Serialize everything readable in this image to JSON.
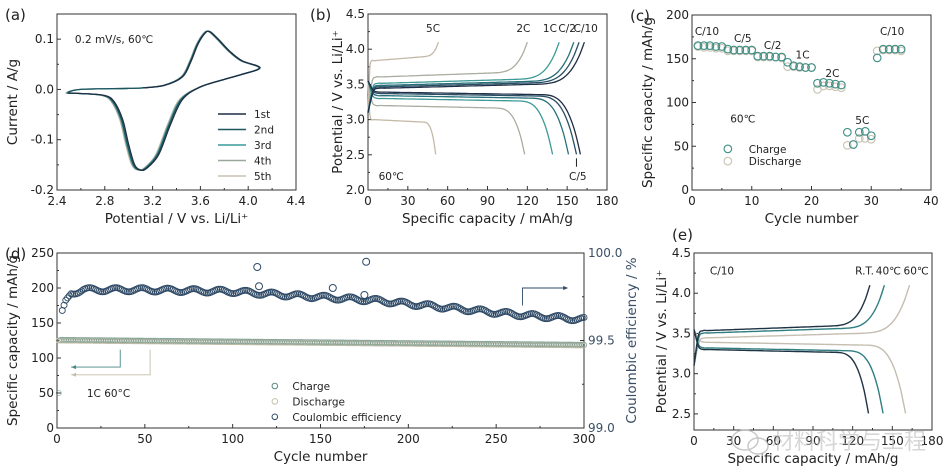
{
  "watermark": {
    "text": "材料科学与工程",
    "icon": "wechat-icon"
  },
  "chart_data": [
    {
      "id": "a",
      "panel_label": "(a)",
      "type": "line",
      "title": "",
      "annotation": "0.2 mV/s, 60℃",
      "xlabel": "Potential / V vs. Li/Li⁺",
      "ylabel": "Current / A/g",
      "xlim": [
        2.4,
        4.4
      ],
      "ylim": [
        -0.2,
        0.15
      ],
      "xticks": [
        2.4,
        2.8,
        3.2,
        3.6,
        4.0,
        4.4
      ],
      "xtick_labels": [
        "2.4",
        "2.8",
        "3.2",
        "3.6",
        "4.0",
        "4.4"
      ],
      "yticks": [
        -0.2,
        -0.1,
        0.0,
        0.1
      ],
      "ytick_labels": [
        "-0.2",
        "-0.1",
        "0.0",
        "0.1"
      ],
      "legend": {
        "position": "bottom-right",
        "entries": [
          "1st",
          "2nd",
          "3rd",
          "4th",
          "5th"
        ]
      },
      "series": [
        {
          "name": "1st",
          "color": "#1f2f45",
          "shift": 0.0,
          "start": 3.12
        },
        {
          "name": "2nd",
          "color": "#1d5560",
          "shift": -0.01,
          "start": 2.5
        },
        {
          "name": "3rd",
          "color": "#3a9a9a",
          "shift": -0.015,
          "start": 2.5
        },
        {
          "name": "4th",
          "color": "#9aa89a",
          "shift": -0.02,
          "start": 2.5
        },
        {
          "name": "5th",
          "color": "#c9c0b0",
          "shift": -0.025,
          "start": 2.5
        }
      ],
      "cv_shape": {
        "anodic": [
          [
            3.12,
            0.003
          ],
          [
            3.3,
            0.008
          ],
          [
            3.45,
            0.025
          ],
          [
            3.52,
            0.055
          ],
          [
            3.58,
            0.09
          ],
          [
            3.64,
            0.112
          ],
          [
            3.68,
            0.115
          ],
          [
            3.75,
            0.1
          ],
          [
            3.85,
            0.075
          ],
          [
            3.95,
            0.057
          ],
          [
            4.1,
            0.043
          ]
        ],
        "cathodic": [
          [
            4.1,
            0.043
          ],
          [
            3.95,
            0.03
          ],
          [
            3.8,
            0.02
          ],
          [
            3.6,
            0.005
          ],
          [
            3.45,
            -0.02
          ],
          [
            3.35,
            -0.07
          ],
          [
            3.25,
            -0.13
          ],
          [
            3.15,
            -0.157
          ],
          [
            3.1,
            -0.16
          ],
          [
            3.05,
            -0.15
          ],
          [
            3.0,
            -0.11
          ],
          [
            2.95,
            -0.06
          ],
          [
            2.88,
            -0.025
          ],
          [
            2.8,
            -0.012
          ],
          [
            2.6,
            -0.008
          ],
          [
            2.5,
            -0.007
          ]
        ],
        "return": [
          [
            2.5,
            -0.002
          ],
          [
            2.6,
            0.0
          ],
          [
            3.0,
            0.002
          ],
          [
            3.12,
            0.003
          ]
        ]
      }
    },
    {
      "id": "b",
      "panel_label": "(b)",
      "type": "line",
      "annotation": "60℃",
      "xlabel": "Specific capacity / mAh/g",
      "ylabel": "Potential / V vs. Li/Li⁺",
      "xlim": [
        0,
        180
      ],
      "ylim": [
        2.0,
        4.5
      ],
      "xticks": [
        0,
        30,
        60,
        90,
        120,
        150,
        180
      ],
      "xtick_labels": [
        "0",
        "30",
        "60",
        "90",
        "120",
        "150",
        "180"
      ],
      "yticks": [
        2.0,
        2.5,
        3.0,
        3.5,
        4.0,
        4.5
      ],
      "ytick_labels": [
        "2.0",
        "2.5",
        "3.0",
        "3.5",
        "4.0",
        "4.5"
      ],
      "series": [
        {
          "name": "C/10",
          "color": "#1f2f45",
          "charge_cap": 163,
          "discharge_cap": 160,
          "charge_plateau": 3.46,
          "discharge_plateau": 3.39
        },
        {
          "name": "C/5",
          "color": "#2a4f66",
          "charge_cap": 159,
          "discharge_cap": 157,
          "charge_plateau": 3.48,
          "discharge_plateau": 3.37
        },
        {
          "name": "C/2",
          "color": "#27707a",
          "charge_cap": 155,
          "discharge_cap": 151,
          "charge_plateau": 3.5,
          "discharge_plateau": 3.34
        },
        {
          "name": "1C",
          "color": "#3e9a96",
          "charge_cap": 144,
          "discharge_cap": 139,
          "charge_plateau": 3.53,
          "discharge_plateau": 3.3
        },
        {
          "name": "2C",
          "color": "#a8aea0",
          "charge_cap": 120,
          "discharge_cap": 118,
          "charge_plateau": 3.62,
          "discharge_plateau": 3.2
        },
        {
          "name": "5C",
          "color": "#c4b9a8",
          "charge_cap": 53,
          "discharge_cap": 51,
          "charge_plateau": 3.85,
          "discharge_plateau": 3.0
        }
      ],
      "labels": [
        "5C",
        "2C",
        "1C",
        "C/2",
        "C/10",
        "C/5"
      ]
    },
    {
      "id": "c",
      "panel_label": "(c)",
      "type": "scatter",
      "xlabel": "Cycle number",
      "ylabel": "Specific capacity / mAh/g",
      "xlim": [
        0,
        40
      ],
      "ylim": [
        0,
        200
      ],
      "xticks": [
        0,
        10,
        20,
        30,
        40
      ],
      "xtick_labels": [
        "0",
        "10",
        "20",
        "30",
        "40"
      ],
      "yticks": [
        0,
        50,
        100,
        150,
        200
      ],
      "ytick_labels": [
        "0",
        "50",
        "100",
        "150",
        "200"
      ],
      "annotation": "60℃",
      "rate_labels": [
        {
          "text": "C/10",
          "x": 2.5,
          "y": 182
        },
        {
          "text": "C/5",
          "x": 8.5,
          "y": 174
        },
        {
          "text": "C/2",
          "x": 13.5,
          "y": 166
        },
        {
          "text": "1C",
          "x": 18.5,
          "y": 155
        },
        {
          "text": "2C",
          "x": 23.5,
          "y": 134
        },
        {
          "text": "5C",
          "x": 28.5,
          "y": 80
        },
        {
          "text": "C/10",
          "x": 33.5,
          "y": 182
        }
      ],
      "legend": {
        "position": "bottom-left",
        "entries": [
          "Charge",
          "Discharge"
        ]
      },
      "series": [
        {
          "name": "Charge",
          "color": "#3f8f86",
          "x": [
            1,
            2,
            3,
            4,
            5,
            6,
            7,
            8,
            9,
            10,
            11,
            12,
            13,
            14,
            15,
            16,
            17,
            18,
            19,
            20,
            21,
            22,
            23,
            24,
            25,
            26,
            27,
            28,
            29,
            30,
            31,
            32,
            33,
            34,
            35
          ],
          "y": [
            165,
            165,
            165,
            164,
            164,
            161,
            160,
            160,
            160,
            160,
            153,
            153,
            153,
            152,
            152,
            146,
            142,
            141,
            140,
            140,
            122,
            123,
            122,
            121,
            120,
            66,
            52,
            66,
            67,
            62,
            151,
            161,
            161,
            161,
            161
          ]
        },
        {
          "name": "Discharge",
          "color": "#c9c3b3",
          "x": [
            1,
            2,
            3,
            4,
            5,
            6,
            7,
            8,
            9,
            10,
            11,
            12,
            13,
            14,
            15,
            16,
            17,
            18,
            19,
            20,
            21,
            22,
            23,
            24,
            25,
            26,
            27,
            28,
            29,
            30,
            31,
            32,
            33,
            34,
            35
          ],
          "y": [
            164,
            163,
            163,
            162,
            162,
            159,
            159,
            159,
            159,
            159,
            152,
            152,
            152,
            152,
            151,
            141,
            141,
            140,
            140,
            140,
            115,
            119,
            119,
            118,
            117,
            51,
            52,
            59,
            59,
            58,
            159,
            160,
            160,
            160,
            159
          ]
        }
      ]
    },
    {
      "id": "d",
      "panel_label": "(d)",
      "type": "scatter",
      "xlabel": "Cycle number",
      "ylabel": "Specific capacity / mAh/g",
      "ylabel_right": "Coulombic efficiency / %",
      "xlim": [
        0,
        300
      ],
      "ylim": [
        0,
        250
      ],
      "ylim_right": [
        99.0,
        100.0
      ],
      "xticks": [
        0,
        50,
        100,
        150,
        200,
        250,
        300
      ],
      "xtick_labels": [
        "0",
        "50",
        "100",
        "150",
        "200",
        "250",
        "300"
      ],
      "yticks": [
        0,
        50,
        100,
        150,
        200,
        250
      ],
      "ytick_labels": [
        "0",
        "50",
        "100",
        "150",
        "200",
        "250"
      ],
      "yticks_right": [
        99.0,
        99.5,
        100.0
      ],
      "ytick_labels_right": [
        "99.0",
        "99.5",
        "100.0"
      ],
      "annotation": "1C  60°C",
      "legend": {
        "position": "bottom-center",
        "entries": [
          "Charge",
          "Discharge",
          "Coulombic efficiency"
        ]
      },
      "series": [
        {
          "name": "Charge",
          "color": "#5a8a80",
          "axis": "left",
          "start": 126,
          "end": 119,
          "first": 50
        },
        {
          "name": "Discharge",
          "color": "#c4bfaa",
          "axis": "left",
          "start": 125,
          "end": 118
        },
        {
          "name": "Coulombic efficiency",
          "color": "#2f4a66",
          "axis": "right",
          "trend": [
            [
              1,
              99.58
            ],
            [
              3,
              99.66
            ],
            [
              5,
              99.72
            ],
            [
              8,
              99.77
            ],
            [
              15,
              99.79
            ],
            [
              50,
              99.79
            ],
            [
              100,
              99.78
            ],
            [
              130,
              99.76
            ],
            [
              180,
              99.73
            ],
            [
              220,
              99.69
            ],
            [
              260,
              99.65
            ],
            [
              300,
              99.62
            ]
          ],
          "outliers": [
            [
              114,
              99.92
            ],
            [
              115,
              99.81
            ],
            [
              157,
              99.8
            ],
            [
              176,
              99.95
            ],
            [
              175,
              99.76
            ]
          ]
        }
      ]
    },
    {
      "id": "e",
      "panel_label": "(e)",
      "type": "line",
      "annotation": "C/10",
      "xlabel": "Specific capacity / mAh/g",
      "ylabel": "Potential / V vs. Li/Li⁺",
      "xlim": [
        0,
        180
      ],
      "ylim": [
        2.3,
        4.5
      ],
      "xticks": [
        0,
        30,
        60,
        90,
        120,
        150,
        180
      ],
      "xtick_labels": [
        "0",
        "30",
        "60",
        "90",
        "120",
        "150",
        "180"
      ],
      "yticks": [
        2.5,
        3.0,
        3.5,
        4.0,
        4.5
      ],
      "ytick_labels": [
        "2.5",
        "3.0",
        "3.5",
        "4.0",
        "4.5"
      ],
      "series": [
        {
          "name": "R.T.",
          "color": "#1f3345",
          "charge_cap": 133,
          "discharge_cap": 132,
          "charge_plateau": 3.55,
          "discharge_plateau": 3.3
        },
        {
          "name": "40℃",
          "color": "#2f7f82",
          "charge_cap": 144,
          "discharge_cap": 143,
          "charge_plateau": 3.52,
          "discharge_plateau": 3.32
        },
        {
          "name": "60℃",
          "color": "#c4bdb0",
          "charge_cap": 163,
          "discharge_cap": 160,
          "charge_plateau": 3.46,
          "discharge_plateau": 3.39
        }
      ],
      "labels": [
        "R.T.",
        "40℃",
        "60℃"
      ]
    }
  ]
}
